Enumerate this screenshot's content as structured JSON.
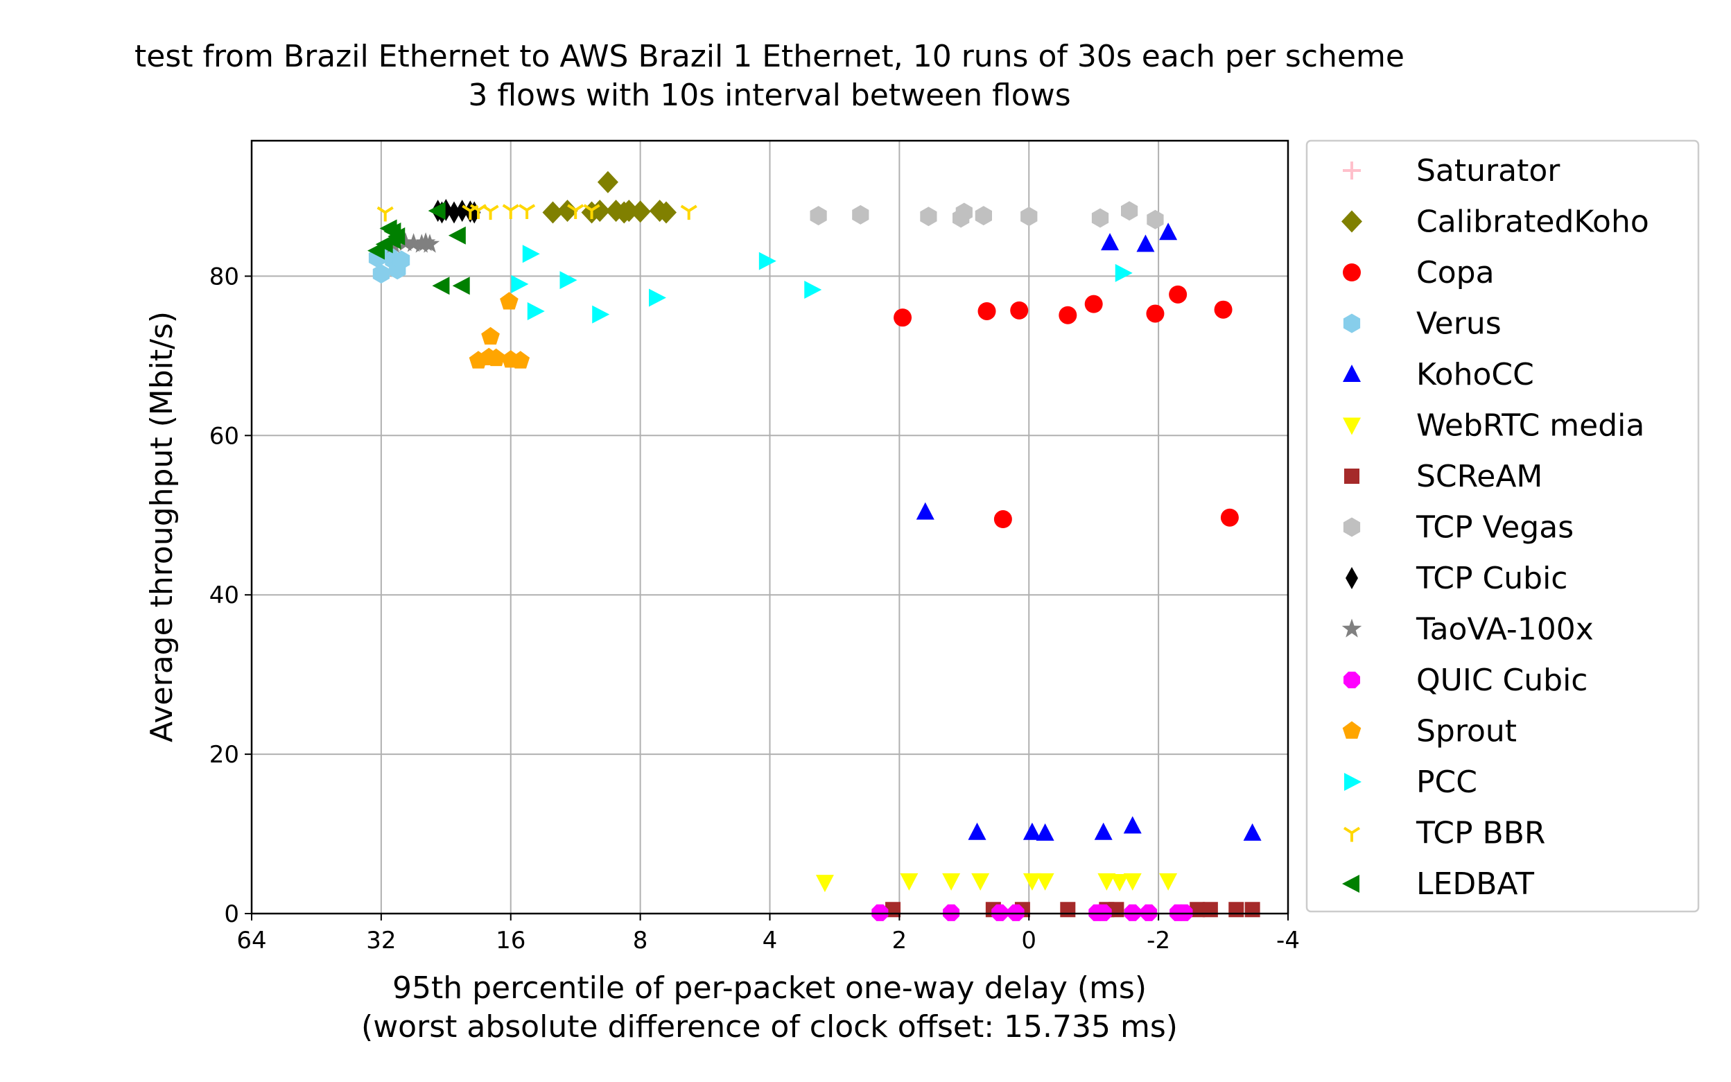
{
  "chart_data": {
    "type": "scatter",
    "title": "test from Brazil Ethernet to AWS Brazil 1 Ethernet, 10 runs of 30s each per scheme",
    "subtitle": "3 flows with 10s interval between flows",
    "xlabel": "95th percentile of per-packet one-way delay (ms)",
    "xlabel2": "(worst absolute difference of clock offset: 15.735 ms)",
    "ylabel": "Average throughput (Mbit/s)",
    "x_scale": "log2, decreasing left to right",
    "xlim": [
      64,
      -4
    ],
    "ylim": [
      0,
      97
    ],
    "xticks": [
      "64",
      "32",
      "16",
      "8",
      "4",
      "2",
      "0",
      "-2",
      "-4"
    ],
    "yticks": [
      "0",
      "20",
      "40",
      "60",
      "80"
    ],
    "grid": true,
    "legend_position": "outside right",
    "series": [
      {
        "name": "Saturator",
        "marker": "plus",
        "color": "#ffc0cb",
        "points": []
      },
      {
        "name": "CalibratedKoho",
        "marker": "diamond",
        "color": "#808000",
        "points": [
          [
            13.4,
            88.0
          ],
          [
            10.0,
            91.8
          ],
          [
            11.0,
            88.0
          ],
          [
            12.5,
            88.2
          ],
          [
            10.5,
            88.2
          ],
          [
            9.5,
            88.2
          ],
          [
            8.7,
            88.2
          ],
          [
            8.0,
            88.1
          ],
          [
            7.4,
            88.2
          ],
          [
            7.2,
            88.0
          ],
          [
            9.0,
            88.0
          ]
        ]
      },
      {
        "name": "Copa",
        "marker": "circle",
        "color": "#ff0000",
        "points": [
          [
            1.95,
            74.8
          ],
          [
            0.65,
            75.6
          ],
          [
            0.15,
            75.7
          ],
          [
            -0.6,
            75.1
          ],
          [
            -1.0,
            76.5
          ],
          [
            -1.95,
            75.3
          ],
          [
            -2.3,
            77.7
          ],
          [
            -3.0,
            75.8
          ],
          [
            0.4,
            49.5
          ],
          [
            -3.1,
            49.7
          ]
        ]
      },
      {
        "name": "Verus",
        "marker": "hexagon",
        "color": "#87ceeb",
        "points": [
          [
            30.5,
            82.0
          ],
          [
            33.0,
            82.3
          ],
          [
            30.0,
            80.8
          ],
          [
            32.0,
            80.3
          ],
          [
            31.0,
            82.8
          ],
          [
            29.5,
            82.0
          ]
        ]
      },
      {
        "name": "KohoCC",
        "marker": "triangle-up",
        "color": "#0000ff",
        "points": [
          [
            -1.25,
            84.2
          ],
          [
            -1.8,
            84.0
          ],
          [
            -2.15,
            85.5
          ],
          [
            1.6,
            50.4
          ],
          [
            0.8,
            10.2
          ],
          [
            -0.05,
            10.2
          ],
          [
            -0.25,
            10.1
          ],
          [
            -1.15,
            10.2
          ],
          [
            -1.6,
            11.0
          ],
          [
            -3.45,
            10.1
          ]
        ]
      },
      {
        "name": "WebRTC media",
        "marker": "triangle-down",
        "color": "#ffff00",
        "points": [
          [
            3.15,
            3.9
          ],
          [
            1.85,
            4.1
          ],
          [
            1.2,
            4.1
          ],
          [
            0.75,
            4.1
          ],
          [
            -0.05,
            4.1
          ],
          [
            -0.25,
            4.1
          ],
          [
            -1.2,
            4.1
          ],
          [
            -1.4,
            4.0
          ],
          [
            -1.6,
            4.1
          ],
          [
            -2.15,
            4.1
          ]
        ]
      },
      {
        "name": "SCReAM",
        "marker": "square",
        "color": "#a52a2a",
        "points": [
          [
            2.1,
            0.5
          ],
          [
            0.55,
            0.5
          ],
          [
            0.1,
            0.5
          ],
          [
            -0.6,
            0.5
          ],
          [
            -1.2,
            0.5
          ],
          [
            -1.35,
            0.5
          ],
          [
            -2.6,
            0.5
          ],
          [
            -2.8,
            0.5
          ],
          [
            -3.2,
            0.5
          ],
          [
            -3.45,
            0.5
          ]
        ]
      },
      {
        "name": "TCP Vegas",
        "marker": "hexagon",
        "color": "#c0c0c0",
        "points": [
          [
            3.25,
            87.6
          ],
          [
            2.6,
            87.7
          ],
          [
            1.55,
            87.5
          ],
          [
            1.05,
            87.3
          ],
          [
            1.0,
            88.0
          ],
          [
            0.7,
            87.6
          ],
          [
            0.0,
            87.5
          ],
          [
            -1.1,
            87.3
          ],
          [
            -1.55,
            88.2
          ],
          [
            -1.95,
            87.1
          ]
        ]
      },
      {
        "name": "TCP Cubic",
        "marker": "thin-diamond",
        "color": "#000000",
        "points": [
          [
            25.0,
            88.2
          ],
          [
            24.0,
            88.3
          ],
          [
            23.0,
            88.0
          ],
          [
            22.0,
            88.2
          ],
          [
            21.0,
            88.1
          ],
          [
            20.5,
            88.0
          ],
          [
            24.5,
            88.0
          ]
        ]
      },
      {
        "name": "TaoVA-100x",
        "marker": "star",
        "color": "#808080",
        "points": [
          [
            30.5,
            84.0
          ],
          [
            29.0,
            84.2
          ],
          [
            28.0,
            84.1
          ],
          [
            27.0,
            84.0
          ],
          [
            26.5,
            84.2
          ],
          [
            26.0,
            84.0
          ]
        ]
      },
      {
        "name": "QUIC Cubic",
        "marker": "octagon",
        "color": "#ff00ff",
        "points": [
          [
            2.3,
            0.1
          ],
          [
            1.2,
            0.1
          ],
          [
            0.45,
            0.1
          ],
          [
            0.2,
            0.1
          ],
          [
            -1.05,
            0.1
          ],
          [
            -1.15,
            0.1
          ],
          [
            -1.6,
            0.1
          ],
          [
            -1.85,
            0.1
          ],
          [
            -2.3,
            0.1
          ],
          [
            -2.4,
            0.1
          ]
        ]
      },
      {
        "name": "Sprout",
        "marker": "pentagon",
        "color": "#ffa500",
        "points": [
          [
            16.2,
            76.8
          ],
          [
            18.5,
            72.4
          ],
          [
            20.0,
            69.4
          ],
          [
            18.7,
            69.8
          ],
          [
            17.8,
            69.7
          ],
          [
            16.0,
            69.5
          ],
          [
            15.4,
            69.4
          ]
        ]
      },
      {
        "name": "PCC",
        "marker": "triangle-right",
        "color": "#00ffff",
        "points": [
          [
            14.8,
            82.8
          ],
          [
            15.5,
            79.0
          ],
          [
            14.5,
            75.6
          ],
          [
            12.5,
            79.5
          ],
          [
            10.5,
            75.2
          ],
          [
            7.5,
            77.3
          ],
          [
            4.1,
            81.9
          ],
          [
            3.35,
            78.3
          ],
          [
            -1.45,
            80.4
          ]
        ]
      },
      {
        "name": "TCP BBR",
        "marker": "tri-down",
        "color": "#ffd700",
        "points": [
          [
            31.5,
            88.0
          ],
          [
            21.0,
            88.2
          ],
          [
            20.0,
            88.3
          ],
          [
            18.5,
            88.2
          ],
          [
            16.0,
            88.3
          ],
          [
            15.0,
            88.3
          ],
          [
            12.0,
            88.3
          ],
          [
            11.0,
            88.3
          ],
          [
            6.5,
            88.2
          ]
        ]
      },
      {
        "name": "LEDBAT",
        "marker": "triangle-left",
        "color": "#008000",
        "points": [
          [
            33.0,
            83.2
          ],
          [
            31.5,
            84.0
          ],
          [
            31.0,
            86.0
          ],
          [
            30.5,
            85.6
          ],
          [
            30.0,
            85.0
          ],
          [
            30.5,
            84.5
          ],
          [
            24.5,
            78.8
          ],
          [
            22.0,
            78.8
          ],
          [
            22.5,
            85.1
          ],
          [
            25.0,
            88.2
          ]
        ]
      }
    ]
  }
}
